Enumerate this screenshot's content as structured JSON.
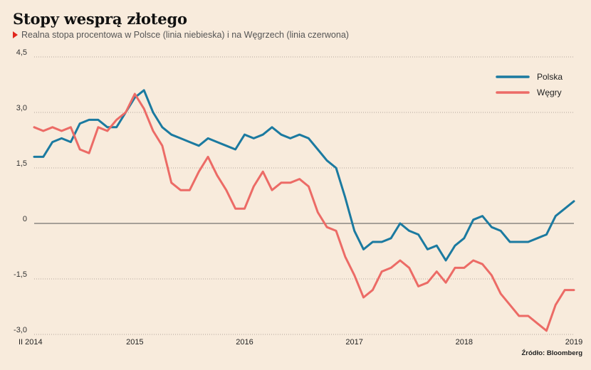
{
  "title": "Stopy wesprą złotego",
  "subtitle": "Realna stopa procentowa w Polsce (linia niebieska) i na Węgrzech (linia czerwona)",
  "source": "Źródło: Bloomberg",
  "colors": {
    "polska": "#1b7aa0",
    "wegry": "#ec6b66",
    "background": "#f8ebdc"
  },
  "chart_data": {
    "type": "line",
    "ylim": [
      -3.0,
      4.5
    ],
    "y_ticks": [
      "4,5",
      "3,0",
      "1,5",
      "0",
      "-1,5",
      "-3,0"
    ],
    "y_tick_values": [
      4.5,
      3.0,
      1.5,
      0,
      -1.5,
      -3.0
    ],
    "x_start": "II 2014",
    "x_end": "2019",
    "x_ticks": [
      "II 2014",
      "2015",
      "2016",
      "2017",
      "2018",
      "2019"
    ],
    "legend_position": "top-right",
    "series": [
      {
        "name": "Polska",
        "color": "#1b7aa0",
        "values": [
          1.8,
          1.8,
          2.2,
          2.3,
          2.2,
          2.7,
          2.8,
          2.8,
          2.6,
          2.6,
          3.0,
          3.4,
          3.6,
          3.0,
          2.6,
          2.4,
          2.3,
          2.2,
          2.1,
          2.3,
          2.2,
          2.1,
          2.0,
          2.4,
          2.3,
          2.4,
          2.6,
          2.4,
          2.3,
          2.4,
          2.3,
          2.0,
          1.7,
          1.5,
          0.7,
          -0.2,
          -0.7,
          -0.5,
          -0.5,
          -0.4,
          0.0,
          -0.2,
          -0.3,
          -0.7,
          -0.6,
          -1.0,
          -0.6,
          -0.4,
          0.1,
          0.2,
          -0.1,
          -0.2,
          -0.5,
          -0.5,
          -0.5,
          -0.4,
          -0.3,
          0.2,
          0.4,
          0.6
        ]
      },
      {
        "name": "Węgry",
        "color": "#ec6b66",
        "values": [
          2.6,
          2.5,
          2.6,
          2.5,
          2.6,
          2.0,
          1.9,
          2.6,
          2.5,
          2.8,
          3.0,
          3.5,
          3.1,
          2.5,
          2.1,
          1.1,
          0.9,
          0.9,
          1.4,
          1.8,
          1.3,
          0.9,
          0.4,
          0.4,
          1.0,
          1.4,
          0.9,
          1.1,
          1.1,
          1.2,
          1.0,
          0.3,
          -0.1,
          -0.2,
          -0.9,
          -1.4,
          -2.0,
          -1.8,
          -1.3,
          -1.2,
          -1.0,
          -1.2,
          -1.7,
          -1.6,
          -1.3,
          -1.6,
          -1.2,
          -1.2,
          -1.0,
          -1.1,
          -1.4,
          -1.9,
          -2.2,
          -2.5,
          -2.5,
          -2.7,
          -2.9,
          -2.2,
          -1.8,
          -1.8
        ]
      }
    ]
  }
}
